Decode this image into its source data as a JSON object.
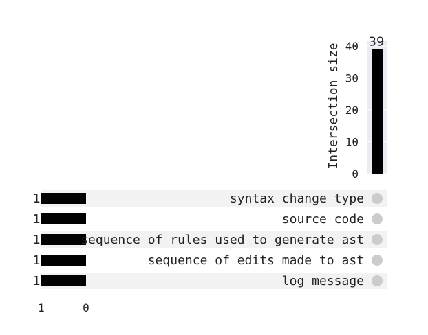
{
  "chart_data": {
    "type": "bar",
    "title": "",
    "intersections": [
      {
        "members": [],
        "value": 39,
        "label": "39"
      }
    ],
    "intersection_axis": {
      "label": "Intersection size",
      "ylim": [
        0,
        41.5
      ],
      "ticks": [
        0,
        10,
        20,
        30,
        40
      ],
      "tick_labels": [
        "0",
        "10",
        "20",
        "30",
        "40"
      ]
    },
    "sets": [
      {
        "name": "syntax change type",
        "size": 1,
        "size_label": "1"
      },
      {
        "name": "source code",
        "size": 1,
        "size_label": "1"
      },
      {
        "name": "sequence of rules used to generate ast",
        "size": 1,
        "size_label": "1"
      },
      {
        "name": "sequence of edits made to ast",
        "size": 1,
        "size_label": "1"
      },
      {
        "name": "log message",
        "size": 1,
        "size_label": "1"
      }
    ],
    "set_size_axis": {
      "xlim": [
        1,
        0
      ],
      "ticks": [
        1,
        0
      ],
      "tick_labels": [
        "1",
        "0"
      ]
    },
    "colors": {
      "bar": "#000000",
      "stripe": "#f2f2f2",
      "intersection_bg": "#ebebf2",
      "dot_inactive": "#cccccc",
      "text": "#222222"
    }
  }
}
